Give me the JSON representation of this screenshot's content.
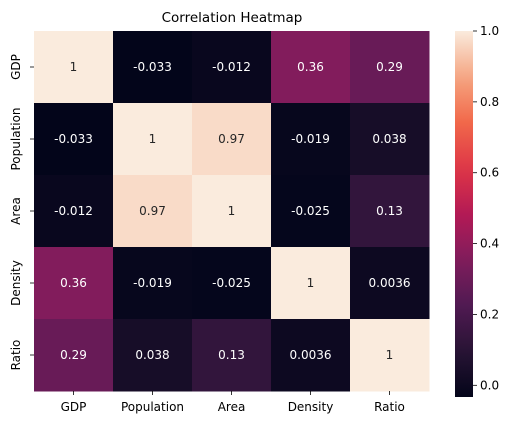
{
  "chart_data": {
    "type": "heatmap",
    "title": "Correlation Heatmap",
    "row_labels": [
      "GDP",
      "Population",
      "Area",
      "Density",
      "Ratio"
    ],
    "col_labels": [
      "GDP",
      "Population",
      "Area",
      "Density",
      "Ratio"
    ],
    "values": [
      [
        1,
        -0.033,
        -0.012,
        0.36,
        0.29
      ],
      [
        -0.033,
        1,
        0.97,
        -0.019,
        0.038
      ],
      [
        -0.012,
        0.97,
        1,
        -0.025,
        0.13
      ],
      [
        0.36,
        -0.019,
        -0.025,
        1,
        0.0036
      ],
      [
        0.29,
        0.038,
        0.13,
        0.0036,
        1
      ]
    ],
    "cell_labels": [
      [
        "1",
        "-0.033",
        "-0.012",
        "0.36",
        "0.29"
      ],
      [
        "-0.033",
        "1",
        "0.97",
        "-0.019",
        "0.038"
      ],
      [
        "-0.012",
        "0.97",
        "1",
        "-0.025",
        "0.13"
      ],
      [
        "0.36",
        "-0.019",
        "-0.025",
        "1",
        "0.0036"
      ],
      [
        "0.29",
        "0.038",
        "0.13",
        "0.0036",
        "1"
      ]
    ],
    "colorbar": {
      "vmin": -0.033,
      "vmax": 1,
      "ticks": [
        0.0,
        0.2,
        0.4,
        0.6,
        0.8,
        1.0
      ],
      "tick_labels": [
        "0.0",
        "0.2",
        "0.4",
        "0.6",
        "0.8",
        "1.0"
      ]
    },
    "colormap": "rocket"
  }
}
